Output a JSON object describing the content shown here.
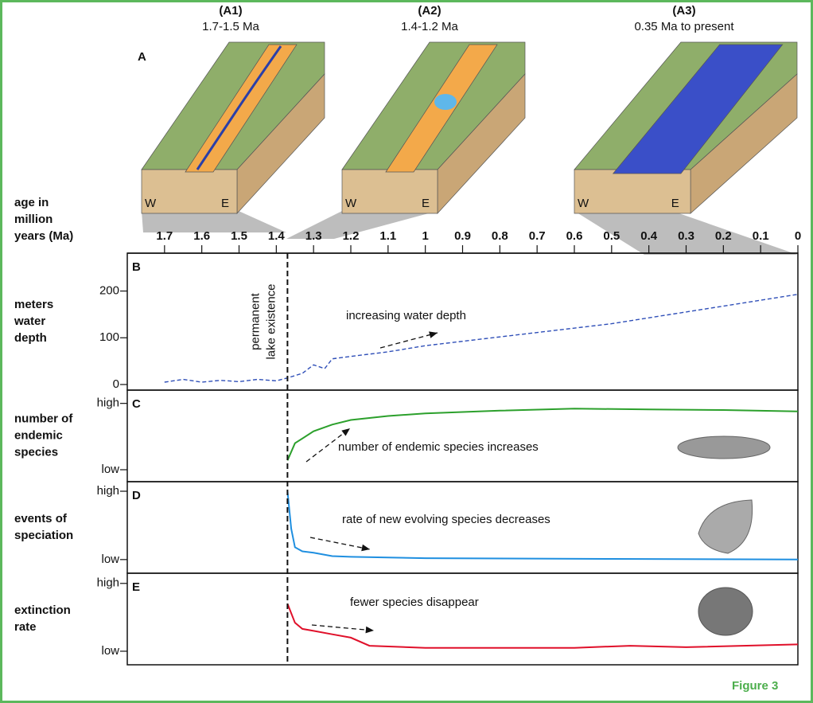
{
  "figure": {
    "label": "Figure 3",
    "panel_a": {
      "letter": "A",
      "scenes": [
        {
          "label": "(A1)",
          "period": "1.7-1.5 Ma",
          "west": "W",
          "east": "E"
        },
        {
          "label": "(A2)",
          "period": "1.4-1.2 Ma",
          "west": "W",
          "east": "E"
        },
        {
          "label": "(A3)",
          "period": "0.35 Ma to present",
          "west": "W",
          "east": "E"
        }
      ]
    },
    "x_axis_title": [
      "age in",
      "million",
      "years (Ma)"
    ]
  },
  "chart_data": [
    {
      "type": "line",
      "panel": "B",
      "y_title": [
        "meters",
        "water",
        "depth"
      ],
      "xlim": [
        1.8,
        0
      ],
      "xticks": [
        1.7,
        1.6,
        1.5,
        1.4,
        1.3,
        1.2,
        1.1,
        1.0,
        0.9,
        0.8,
        0.7,
        0.6,
        0.5,
        0.4,
        0.3,
        0.2,
        0.1,
        0
      ],
      "ylim": [
        -12,
        281
      ],
      "yticks": [
        0,
        100,
        200
      ],
      "line_style": "dashed",
      "marker_x": 1.37,
      "marker_text": [
        "permanent",
        "lake existence"
      ],
      "annotation": "increasing water depth",
      "x": [
        1.7,
        1.65,
        1.6,
        1.55,
        1.5,
        1.45,
        1.4,
        1.37,
        1.33,
        1.3,
        1.27,
        1.25,
        1.2,
        1.1,
        1.0,
        0.5,
        0
      ],
      "series": [
        {
          "color": "#2f4fb8",
          "values": [
            5,
            11,
            5,
            9,
            6,
            11,
            8,
            14,
            24,
            42,
            34,
            55,
            60,
            70,
            83,
            130,
            193
          ]
        }
      ]
    },
    {
      "type": "line",
      "panel": "C",
      "y_title": [
        "number of",
        "endemic",
        "species"
      ],
      "xlim": [
        1.8,
        0
      ],
      "ylim": [
        -0.18,
        1.2
      ],
      "yticks": [
        {
          "value": 0,
          "label": "low"
        },
        {
          "value": 1,
          "label": "high"
        }
      ],
      "annotation": "number of endemic species increases",
      "x": [
        1.37,
        1.35,
        1.3,
        1.25,
        1.2,
        1.1,
        1.0,
        0.8,
        0.6,
        0.4,
        0.2,
        0
      ],
      "series": [
        {
          "color": "#2ca02c",
          "values": [
            0.14,
            0.4,
            0.58,
            0.68,
            0.75,
            0.81,
            0.85,
            0.89,
            0.92,
            0.91,
            0.9,
            0.88
          ]
        }
      ]
    },
    {
      "type": "line",
      "panel": "D",
      "y_title": [
        "events of",
        "speciation"
      ],
      "xlim": [
        1.8,
        0
      ],
      "ylim": [
        -0.2,
        1.14
      ],
      "yticks": [
        {
          "value": 0,
          "label": "low"
        },
        {
          "value": 1,
          "label": "high"
        }
      ],
      "annotation": "rate of new evolving species decreases",
      "x": [
        1.37,
        1.36,
        1.35,
        1.33,
        1.3,
        1.25,
        1.2,
        1.1,
        1.0,
        0.5,
        0
      ],
      "series": [
        {
          "color": "#1f8fe0",
          "values": [
            1.0,
            0.45,
            0.18,
            0.12,
            0.1,
            0.05,
            0.04,
            0.03,
            0.02,
            0.01,
            0.0
          ]
        }
      ]
    },
    {
      "type": "line",
      "panel": "E",
      "y_title": [
        "extinction",
        "rate"
      ],
      "xlim": [
        1.8,
        0
      ],
      "ylim": [
        -0.2,
        1.15
      ],
      "yticks": [
        {
          "value": 0,
          "label": "low"
        },
        {
          "value": 1,
          "label": "high"
        }
      ],
      "annotation": "fewer species disappear",
      "x": [
        1.37,
        1.35,
        1.33,
        1.3,
        1.25,
        1.2,
        1.15,
        1.0,
        0.6,
        0.45,
        0.3,
        0
      ],
      "series": [
        {
          "color": "#e0102a",
          "values": [
            0.7,
            0.42,
            0.33,
            0.3,
            0.25,
            0.2,
            0.08,
            0.05,
            0.05,
            0.08,
            0.06,
            0.1
          ]
        }
      ]
    }
  ]
}
